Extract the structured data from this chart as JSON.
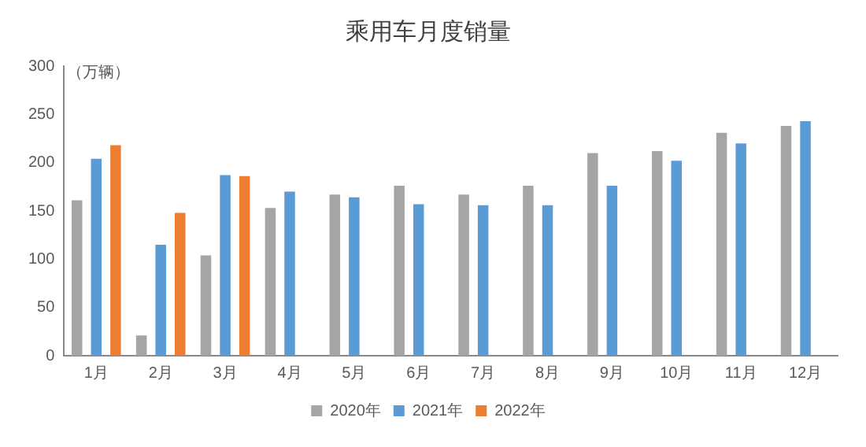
{
  "chart_data": {
    "type": "bar",
    "title": "乘用车月度销量",
    "ylabel": "（万辆）",
    "categories": [
      "1月",
      "2月",
      "3月",
      "4月",
      "5月",
      "6月",
      "7月",
      "8月",
      "9月",
      "10月",
      "11月",
      "12月"
    ],
    "series": [
      {
        "name": "2020年",
        "color": "#a5a5a5",
        "values": [
          161,
          21,
          104,
          153,
          167,
          176,
          167,
          176,
          210,
          212,
          231,
          238
        ]
      },
      {
        "name": "2021年",
        "color": "#5b9bd5",
        "values": [
          204,
          115,
          187,
          170,
          164,
          157,
          156,
          156,
          176,
          202,
          220,
          243
        ]
      },
      {
        "name": "2022年",
        "color": "#ed7d31",
        "values": [
          218,
          148,
          186,
          null,
          null,
          null,
          null,
          null,
          null,
          null,
          null,
          null
        ]
      }
    ],
    "ylim": [
      0,
      300
    ],
    "yticks": [
      0,
      50,
      100,
      150,
      200,
      250,
      300
    ],
    "grid": false,
    "legend": "bottom"
  }
}
